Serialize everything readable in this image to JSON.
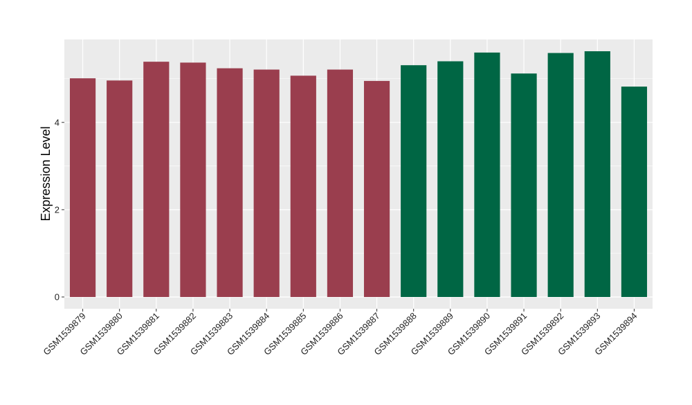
{
  "chart_data": {
    "type": "bar",
    "categories": [
      "GSM1539879",
      "GSM1539880",
      "GSM1539881",
      "GSM1539882",
      "GSM1539883",
      "GSM1539884",
      "GSM1539885",
      "GSM1539886",
      "GSM1539887",
      "GSM1539888",
      "GSM1539889",
      "GSM1539890",
      "GSM1539891",
      "GSM1539892",
      "GSM1539893",
      "GSM1539894"
    ],
    "values": [
      5.01,
      4.96,
      5.39,
      5.37,
      5.24,
      5.21,
      5.07,
      5.21,
      4.95,
      5.31,
      5.4,
      5.6,
      5.12,
      5.59,
      5.63,
      4.82
    ],
    "groups": [
      0,
      0,
      0,
      0,
      0,
      0,
      0,
      0,
      0,
      1,
      1,
      1,
      1,
      1,
      1,
      1
    ],
    "group_colors": [
      "#9a3e4e",
      "#006644"
    ],
    "xlabel": "",
    "ylabel": "Expression Level",
    "ylim": [
      -0.27,
      5.9
    ],
    "yticks": [
      0,
      2,
      4
    ],
    "grid": true,
    "panel_background": "#ebebeb"
  }
}
